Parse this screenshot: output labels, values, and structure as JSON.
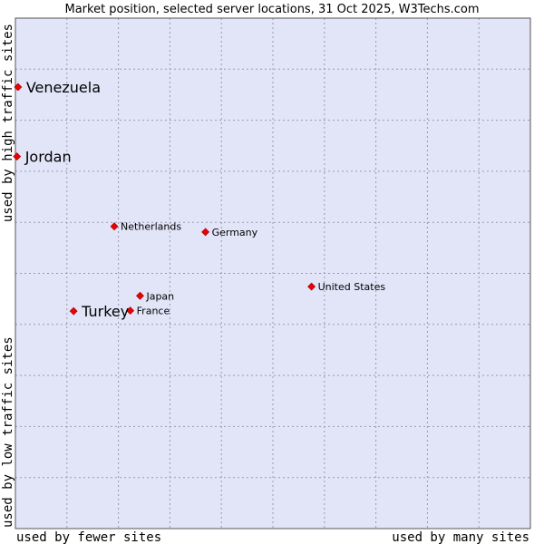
{
  "chart_data": {
    "type": "scatter",
    "title": "Market position, selected server locations, 31 Oct 2025, W3Techs.com",
    "xlabel_left": "used by fewer sites",
    "xlabel_right": "used by many sites",
    "ylabel_top": "used by high traffic sites",
    "ylabel_bottom": "used by low traffic sites",
    "xlim": [
      0,
      100
    ],
    "ylim": [
      0,
      100
    ],
    "grid": true,
    "colors": {
      "plot_background": "#e2e4f8",
      "grid": "#9a9aac",
      "frame": "#555555",
      "marker": "#ee0000",
      "marker_edge": "#990000"
    },
    "points": [
      {
        "label": "Venezuela",
        "x": 0.5,
        "y": 86.5,
        "emphasis": true
      },
      {
        "label": "Jordan",
        "x": 0.3,
        "y": 72.9,
        "emphasis": true
      },
      {
        "label": "Netherlands",
        "x": 19.2,
        "y": 59.2,
        "emphasis": false
      },
      {
        "label": "Germany",
        "x": 36.9,
        "y": 58.1,
        "emphasis": false
      },
      {
        "label": "United States",
        "x": 57.5,
        "y": 47.4,
        "emphasis": false
      },
      {
        "label": "Japan",
        "x": 24.2,
        "y": 45.6,
        "emphasis": false
      },
      {
        "label": "France",
        "x": 22.3,
        "y": 42.7,
        "emphasis": false
      },
      {
        "label": "Turkey",
        "x": 11.3,
        "y": 42.6,
        "emphasis": true
      }
    ]
  }
}
